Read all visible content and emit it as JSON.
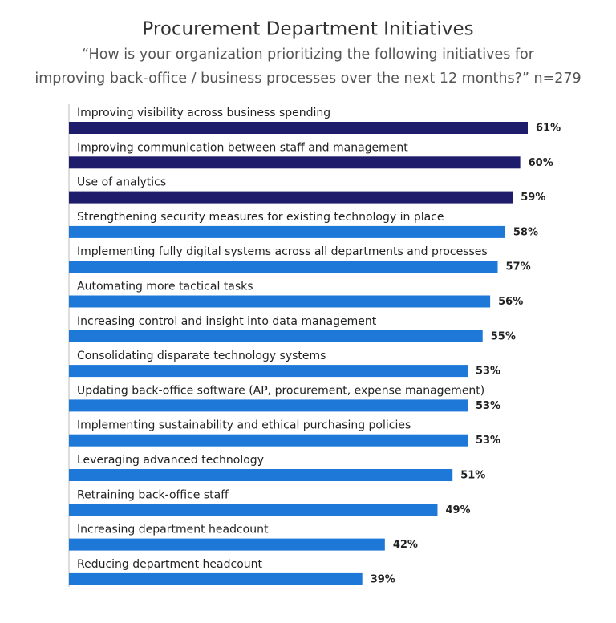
{
  "chart_data": {
    "type": "bar",
    "orientation": "horizontal",
    "title": "Procurement Department Initiatives",
    "subtitle": [
      "“How is your organization prioritizing the following initiatives for",
      "improving back-office / business processes over the next 12 months?” n=279"
    ],
    "categories": [
      "Improving visibility across business spending",
      "Improving communication between staff and management",
      "Use of analytics",
      "Strengthening security measures for existing technology in place",
      "Implementing fully digital systems across all departments and processes",
      "Automating more tactical tasks",
      "Increasing control and insight into data management",
      "Consolidating disparate technology systems",
      "Updating back-office software (AP, procurement, expense management)",
      "Implementing sustainability and ethical purchasing policies",
      "Leveraging advanced technology",
      "Retraining back-office staff",
      "Increasing department headcount",
      "Reducing department headcount"
    ],
    "values": [
      61,
      60,
      59,
      58,
      57,
      56,
      55,
      53,
      53,
      53,
      51,
      49,
      42,
      39
    ],
    "value_labels": [
      "61%",
      "60%",
      "59%",
      "58%",
      "57%",
      "56%",
      "55%",
      "53%",
      "53%",
      "53%",
      "51%",
      "49%",
      "42%",
      "39%"
    ],
    "colors": [
      "#1f1d6b",
      "#1f1d6b",
      "#1f1d6b",
      "#1e78d8",
      "#1e78d8",
      "#1e78d8",
      "#1e78d8",
      "#1e78d8",
      "#1e78d8",
      "#1e78d8",
      "#1e78d8",
      "#1e78d8",
      "#1e78d8",
      "#1e78d8"
    ]
  }
}
